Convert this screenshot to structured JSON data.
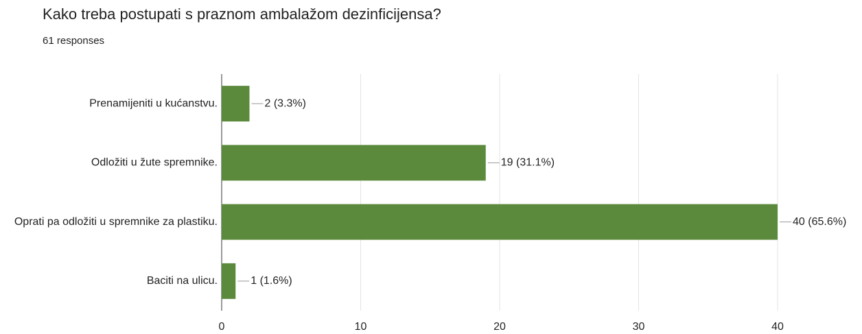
{
  "chart_data": {
    "type": "bar",
    "orientation": "horizontal",
    "title": "Kako treba postupati s praznom ambalažom dezinficijensa?",
    "subtitle": "61 responses",
    "categories": [
      "Prenamijeniti u kućanstvu.",
      "Odložiti u žute spremnike.",
      "Oprati pa odložiti u spremnike za plastiku.",
      "Baciti na ulicu."
    ],
    "values": [
      2,
      19,
      40,
      1
    ],
    "value_labels": [
      "2 (3.3%)",
      "19 (31.1%)",
      "40 (65.6%)",
      "1 (1.6%)"
    ],
    "color": "#5b8a3c",
    "xlim": [
      0,
      40
    ],
    "xticks": [
      0,
      10,
      20,
      30,
      40
    ],
    "grid": true
  }
}
